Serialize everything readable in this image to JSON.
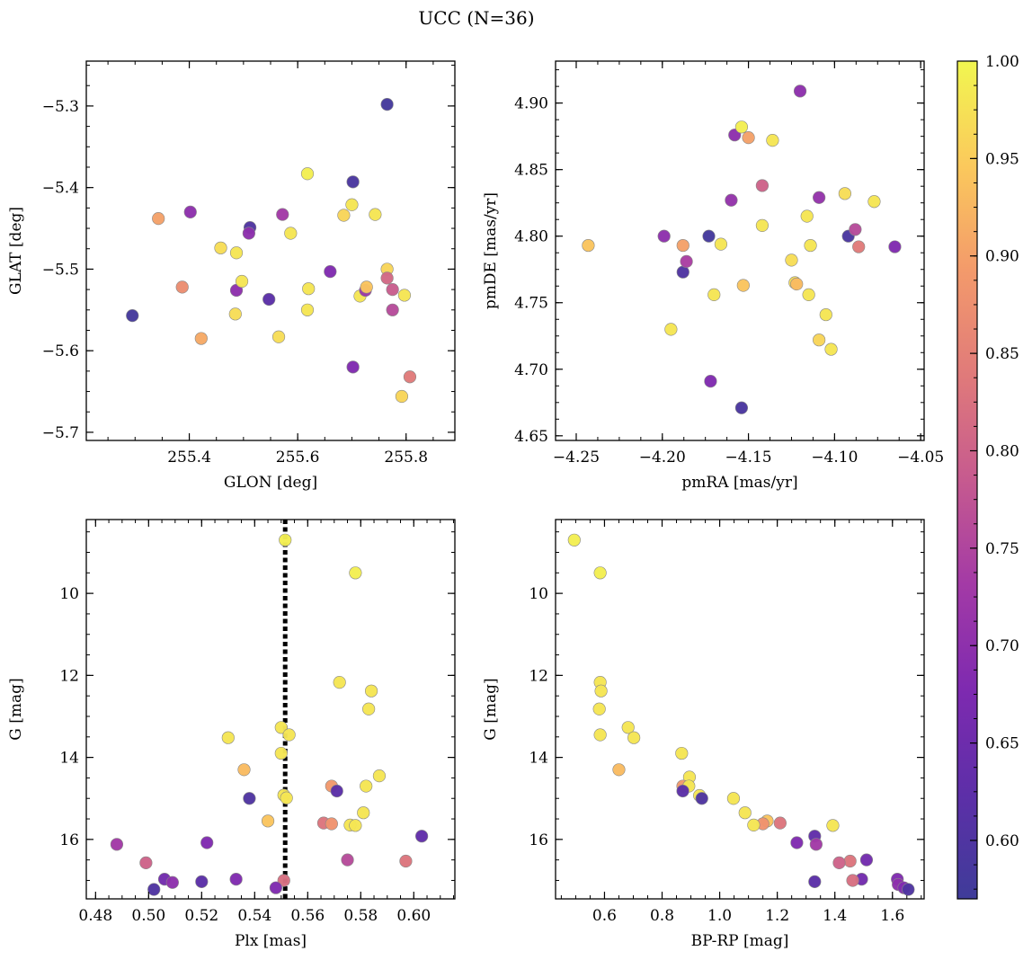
{
  "figure": {
    "title": "UCC (N=36)"
  },
  "colorbar": {
    "range": [
      0.57,
      1.0
    ],
    "ticks": [
      0.6,
      0.65,
      0.7,
      0.75,
      0.8,
      0.85,
      0.9,
      0.95,
      1.0
    ],
    "tick_labels": [
      "0.60",
      "0.65",
      "0.70",
      "0.75",
      "0.80",
      "0.85",
      "0.90",
      "0.95",
      "1.00"
    ],
    "colormap": "plasma"
  },
  "chart_data": [
    {
      "type": "scatter",
      "id": "glon-glat",
      "xlabel": "GLON [deg]",
      "ylabel": "GLAT [deg]",
      "xlim": [
        255.21,
        255.89
      ],
      "ylim": [
        -5.71,
        -5.245
      ],
      "invert_y": false,
      "xticks": [
        255.4,
        255.6,
        255.8
      ],
      "xtick_labels": [
        "255.4",
        "255.6",
        "255.8"
      ],
      "yticks": [
        -5.3,
        -5.4,
        -5.5,
        -5.6,
        -5.7
      ],
      "ytick_labels": [
        "−5.3",
        "−5.4",
        "−5.5",
        "−5.6",
        "−5.7"
      ],
      "points": [
        {
          "x": 255.765,
          "y": -5.298,
          "c": 0.58
        },
        {
          "x": 255.295,
          "y": -5.557,
          "c": 0.58
        },
        {
          "x": 255.343,
          "y": -5.438,
          "c": 0.9
        },
        {
          "x": 255.402,
          "y": -5.43,
          "c": 0.7
        },
        {
          "x": 255.387,
          "y": -5.522,
          "c": 0.87
        },
        {
          "x": 255.422,
          "y": -5.585,
          "c": 0.91
        },
        {
          "x": 255.458,
          "y": -5.474,
          "c": 0.97
        },
        {
          "x": 255.487,
          "y": -5.48,
          "c": 0.98
        },
        {
          "x": 255.485,
          "y": -5.555,
          "c": 0.97
        },
        {
          "x": 255.487,
          "y": -5.526,
          "c": 0.7
        },
        {
          "x": 255.497,
          "y": -5.515,
          "c": 0.98
        },
        {
          "x": 255.512,
          "y": -5.449,
          "c": 0.6
        },
        {
          "x": 255.51,
          "y": -5.456,
          "c": 0.7
        },
        {
          "x": 255.547,
          "y": -5.537,
          "c": 0.62
        },
        {
          "x": 255.565,
          "y": -5.583,
          "c": 0.97
        },
        {
          "x": 255.572,
          "y": -5.433,
          "c": 0.73
        },
        {
          "x": 255.587,
          "y": -5.456,
          "c": 0.98
        },
        {
          "x": 255.618,
          "y": -5.383,
          "c": 0.99
        },
        {
          "x": 255.62,
          "y": -5.524,
          "c": 0.98
        },
        {
          "x": 255.618,
          "y": -5.55,
          "c": 0.98
        },
        {
          "x": 255.66,
          "y": -5.503,
          "c": 0.68
        },
        {
          "x": 255.685,
          "y": -5.434,
          "c": 0.96
        },
        {
          "x": 255.7,
          "y": -5.421,
          "c": 0.98
        },
        {
          "x": 255.702,
          "y": -5.393,
          "c": 0.59
        },
        {
          "x": 255.702,
          "y": -5.62,
          "c": 0.68
        },
        {
          "x": 255.715,
          "y": -5.533,
          "c": 0.98
        },
        {
          "x": 255.725,
          "y": -5.526,
          "c": 0.72
        },
        {
          "x": 255.727,
          "y": -5.522,
          "c": 0.94
        },
        {
          "x": 255.743,
          "y": -5.433,
          "c": 0.98
        },
        {
          "x": 255.765,
          "y": -5.5,
          "c": 0.96
        },
        {
          "x": 255.765,
          "y": -5.511,
          "c": 0.81
        },
        {
          "x": 255.775,
          "y": -5.525,
          "c": 0.79
        },
        {
          "x": 255.775,
          "y": -5.55,
          "c": 0.76
        },
        {
          "x": 255.797,
          "y": -5.532,
          "c": 0.98
        },
        {
          "x": 255.792,
          "y": -5.656,
          "c": 0.96
        },
        {
          "x": 255.807,
          "y": -5.632,
          "c": 0.84
        }
      ]
    },
    {
      "type": "scatter",
      "id": "pmra-pmde",
      "xlabel": "pmRA [mas/yr]",
      "ylabel": "pmDE [mas/yr]",
      "xlim": [
        -4.262,
        -4.048
      ],
      "ylim": [
        4.6465,
        4.9315
      ],
      "invert_y": false,
      "xticks": [
        -4.25,
        -4.2,
        -4.15,
        -4.1,
        -4.05
      ],
      "xtick_labels": [
        "−4.25",
        "−4.20",
        "−4.15",
        "−4.10",
        "−4.05"
      ],
      "yticks": [
        4.65,
        4.7,
        4.75,
        4.8,
        4.85,
        4.9
      ],
      "ytick_labels": [
        "4.65",
        "4.70",
        "4.75",
        "4.80",
        "4.85",
        "4.90"
      ],
      "points": [
        {
          "x": -4.243,
          "y": 4.793,
          "c": 0.94
        },
        {
          "x": -4.199,
          "y": 4.8,
          "c": 0.7
        },
        {
          "x": -4.195,
          "y": 4.73,
          "c": 0.98
        },
        {
          "x": -4.188,
          "y": 4.773,
          "c": 0.6
        },
        {
          "x": -4.188,
          "y": 4.793,
          "c": 0.9
        },
        {
          "x": -4.186,
          "y": 4.781,
          "c": 0.74
        },
        {
          "x": -4.173,
          "y": 4.8,
          "c": 0.58
        },
        {
          "x": -4.172,
          "y": 4.691,
          "c": 0.68
        },
        {
          "x": -4.17,
          "y": 4.756,
          "c": 0.98
        },
        {
          "x": -4.166,
          "y": 4.794,
          "c": 0.98
        },
        {
          "x": -4.16,
          "y": 4.827,
          "c": 0.71
        },
        {
          "x": -4.158,
          "y": 4.876,
          "c": 0.7
        },
        {
          "x": -4.154,
          "y": 4.882,
          "c": 0.99
        },
        {
          "x": -4.153,
          "y": 4.763,
          "c": 0.94
        },
        {
          "x": -4.154,
          "y": 4.671,
          "c": 0.59
        },
        {
          "x": -4.15,
          "y": 4.874,
          "c": 0.9
        },
        {
          "x": -4.142,
          "y": 4.838,
          "c": 0.8
        },
        {
          "x": -4.142,
          "y": 4.808,
          "c": 0.98
        },
        {
          "x": -4.136,
          "y": 4.872,
          "c": 0.98
        },
        {
          "x": -4.125,
          "y": 4.782,
          "c": 0.97
        },
        {
          "x": -4.123,
          "y": 4.765,
          "c": 0.97
        },
        {
          "x": -4.122,
          "y": 4.764,
          "c": 0.93
        },
        {
          "x": -4.12,
          "y": 4.909,
          "c": 0.7
        },
        {
          "x": -4.116,
          "y": 4.815,
          "c": 0.98
        },
        {
          "x": -4.115,
          "y": 4.756,
          "c": 0.98
        },
        {
          "x": -4.114,
          "y": 4.793,
          "c": 0.98
        },
        {
          "x": -4.109,
          "y": 4.829,
          "c": 0.71
        },
        {
          "x": -4.109,
          "y": 4.722,
          "c": 0.96
        },
        {
          "x": -4.105,
          "y": 4.741,
          "c": 0.98
        },
        {
          "x": -4.102,
          "y": 4.715,
          "c": 0.98
        },
        {
          "x": -4.094,
          "y": 4.832,
          "c": 0.97
        },
        {
          "x": -4.092,
          "y": 4.8,
          "c": 0.59
        },
        {
          "x": -4.088,
          "y": 4.805,
          "c": 0.76
        },
        {
          "x": -4.086,
          "y": 4.792,
          "c": 0.84
        },
        {
          "x": -4.077,
          "y": 4.826,
          "c": 0.98
        },
        {
          "x": -4.065,
          "y": 4.792,
          "c": 0.68
        }
      ]
    },
    {
      "type": "scatter",
      "id": "plx-g",
      "xlabel": "Plx [mas]",
      "ylabel": "G [mag]",
      "xlim": [
        0.4765,
        0.6155
      ],
      "ylim": [
        8.2,
        17.45
      ],
      "invert_y": true,
      "vline": {
        "x": 0.5515,
        "style": "dotted"
      },
      "xticks": [
        0.48,
        0.5,
        0.52,
        0.54,
        0.56,
        0.58,
        0.6
      ],
      "xtick_labels": [
        "0.48",
        "0.50",
        "0.52",
        "0.54",
        "0.56",
        "0.58",
        "0.60"
      ],
      "yticks": [
        10,
        12,
        14,
        16
      ],
      "ytick_labels": [
        "10",
        "12",
        "14",
        "16"
      ],
      "points": [
        {
          "x": 0.5515,
          "y": 8.7,
          "c": 0.99
        },
        {
          "x": 0.578,
          "y": 9.5,
          "c": 0.99
        },
        {
          "x": 0.572,
          "y": 12.17,
          "c": 0.98
        },
        {
          "x": 0.584,
          "y": 12.38,
          "c": 0.98
        },
        {
          "x": 0.583,
          "y": 12.82,
          "c": 0.98
        },
        {
          "x": 0.55,
          "y": 13.27,
          "c": 0.98
        },
        {
          "x": 0.53,
          "y": 13.52,
          "c": 0.98
        },
        {
          "x": 0.553,
          "y": 13.45,
          "c": 0.98
        },
        {
          "x": 0.55,
          "y": 13.9,
          "c": 0.98
        },
        {
          "x": 0.536,
          "y": 14.3,
          "c": 0.93
        },
        {
          "x": 0.587,
          "y": 14.45,
          "c": 0.98
        },
        {
          "x": 0.569,
          "y": 14.7,
          "c": 0.89
        },
        {
          "x": 0.582,
          "y": 14.7,
          "c": 0.98
        },
        {
          "x": 0.571,
          "y": 14.82,
          "c": 0.62
        },
        {
          "x": 0.551,
          "y": 14.92,
          "c": 0.98
        },
        {
          "x": 0.552,
          "y": 14.99,
          "c": 0.98
        },
        {
          "x": 0.538,
          "y": 15.0,
          "c": 0.6
        },
        {
          "x": 0.581,
          "y": 15.35,
          "c": 0.98
        },
        {
          "x": 0.545,
          "y": 15.55,
          "c": 0.94
        },
        {
          "x": 0.566,
          "y": 15.6,
          "c": 0.83
        },
        {
          "x": 0.569,
          "y": 15.62,
          "c": 0.88
        },
        {
          "x": 0.576,
          "y": 15.65,
          "c": 0.98
        },
        {
          "x": 0.578,
          "y": 15.66,
          "c": 0.98
        },
        {
          "x": 0.603,
          "y": 15.92,
          "c": 0.63
        },
        {
          "x": 0.488,
          "y": 16.12,
          "c": 0.73
        },
        {
          "x": 0.522,
          "y": 16.08,
          "c": 0.68
        },
        {
          "x": 0.575,
          "y": 16.5,
          "c": 0.76
        },
        {
          "x": 0.499,
          "y": 16.57,
          "c": 0.8
        },
        {
          "x": 0.597,
          "y": 16.53,
          "c": 0.83
        },
        {
          "x": 0.506,
          "y": 16.97,
          "c": 0.66
        },
        {
          "x": 0.533,
          "y": 16.97,
          "c": 0.68
        },
        {
          "x": 0.509,
          "y": 17.05,
          "c": 0.7
        },
        {
          "x": 0.52,
          "y": 17.03,
          "c": 0.62
        },
        {
          "x": 0.551,
          "y": 17.0,
          "c": 0.82
        },
        {
          "x": 0.548,
          "y": 17.18,
          "c": 0.68
        },
        {
          "x": 0.502,
          "y": 17.22,
          "c": 0.6
        }
      ]
    },
    {
      "type": "scatter",
      "id": "bprp-g",
      "xlabel": "BP-RP [mag]",
      "ylabel": "G [mag]",
      "xlim": [
        0.43,
        1.71
      ],
      "ylim": [
        8.2,
        17.45
      ],
      "invert_y": true,
      "xticks": [
        0.6,
        0.8,
        1.0,
        1.2,
        1.4,
        1.6
      ],
      "xtick_labels": [
        "0.6",
        "0.8",
        "1.0",
        "1.2",
        "1.4",
        "1.6"
      ],
      "yticks": [
        10,
        12,
        14,
        16
      ],
      "ytick_labels": [
        "10",
        "12",
        "14",
        "16"
      ],
      "points": [
        {
          "x": 0.495,
          "y": 8.7,
          "c": 0.99
        },
        {
          "x": 0.585,
          "y": 9.5,
          "c": 0.99
        },
        {
          "x": 0.585,
          "y": 12.17,
          "c": 0.98
        },
        {
          "x": 0.588,
          "y": 12.38,
          "c": 0.98
        },
        {
          "x": 0.582,
          "y": 12.82,
          "c": 0.98
        },
        {
          "x": 0.682,
          "y": 13.27,
          "c": 0.98
        },
        {
          "x": 0.585,
          "y": 13.45,
          "c": 0.98
        },
        {
          "x": 0.702,
          "y": 13.52,
          "c": 0.98
        },
        {
          "x": 0.868,
          "y": 13.9,
          "c": 0.98
        },
        {
          "x": 0.65,
          "y": 14.3,
          "c": 0.93
        },
        {
          "x": 0.895,
          "y": 14.48,
          "c": 0.98
        },
        {
          "x": 0.872,
          "y": 14.7,
          "c": 0.89
        },
        {
          "x": 0.893,
          "y": 14.7,
          "c": 0.98
        },
        {
          "x": 0.872,
          "y": 14.82,
          "c": 0.62
        },
        {
          "x": 0.93,
          "y": 14.93,
          "c": 0.98
        },
        {
          "x": 0.938,
          "y": 15.0,
          "c": 0.6
        },
        {
          "x": 1.048,
          "y": 15.0,
          "c": 0.98
        },
        {
          "x": 1.088,
          "y": 15.35,
          "c": 0.98
        },
        {
          "x": 1.165,
          "y": 15.55,
          "c": 0.94
        },
        {
          "x": 1.21,
          "y": 15.6,
          "c": 0.83
        },
        {
          "x": 1.15,
          "y": 15.62,
          "c": 0.88
        },
        {
          "x": 1.118,
          "y": 15.65,
          "c": 0.98
        },
        {
          "x": 1.393,
          "y": 15.66,
          "c": 0.98
        },
        {
          "x": 1.33,
          "y": 15.92,
          "c": 0.63
        },
        {
          "x": 1.268,
          "y": 16.08,
          "c": 0.68
        },
        {
          "x": 1.335,
          "y": 16.12,
          "c": 0.73
        },
        {
          "x": 1.51,
          "y": 16.5,
          "c": 0.66
        },
        {
          "x": 1.453,
          "y": 16.53,
          "c": 0.83
        },
        {
          "x": 1.415,
          "y": 16.57,
          "c": 0.8
        },
        {
          "x": 1.617,
          "y": 16.97,
          "c": 0.68
        },
        {
          "x": 1.493,
          "y": 16.97,
          "c": 0.66
        },
        {
          "x": 1.462,
          "y": 17.0,
          "c": 0.82
        },
        {
          "x": 1.33,
          "y": 17.03,
          "c": 0.62
        },
        {
          "x": 1.62,
          "y": 17.1,
          "c": 0.7
        },
        {
          "x": 1.64,
          "y": 17.18,
          "c": 0.68
        },
        {
          "x": 1.655,
          "y": 17.22,
          "c": 0.6
        }
      ]
    }
  ]
}
